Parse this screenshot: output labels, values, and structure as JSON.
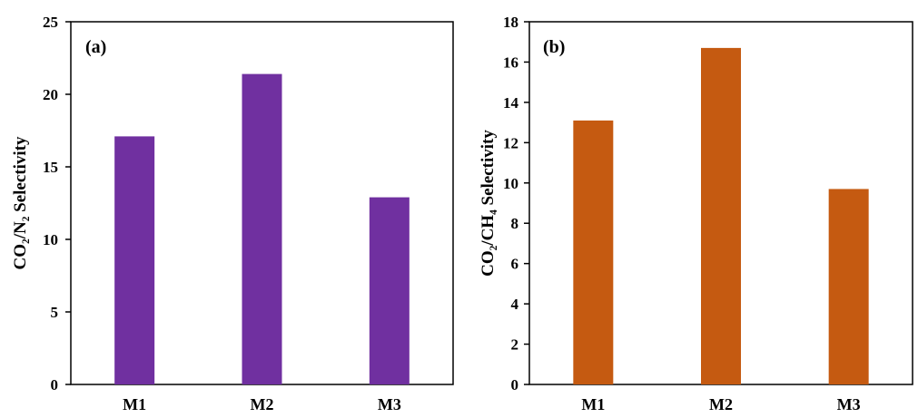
{
  "chart_data": [
    {
      "type": "bar",
      "panel_label": "(a)",
      "categories": [
        "M1",
        "M2",
        "M3"
      ],
      "values": [
        17.1,
        21.4,
        12.9
      ],
      "ylabel": "CO₂/N₂ Selectivity",
      "ylim": [
        0,
        25
      ],
      "yticks": [
        0,
        5,
        10,
        15,
        20,
        25
      ],
      "bar_color": "#7030A0",
      "grid": false
    },
    {
      "type": "bar",
      "panel_label": "(b)",
      "categories": [
        "M1",
        "M2",
        "M3"
      ],
      "values": [
        13.1,
        16.7,
        9.7
      ],
      "ylabel": "CO₂/CH₄ Selectivity",
      "ylim": [
        0,
        18
      ],
      "yticks": [
        0,
        2,
        4,
        6,
        8,
        10,
        12,
        14,
        16,
        18
      ],
      "bar_color": "#C55A11",
      "grid": false
    }
  ]
}
